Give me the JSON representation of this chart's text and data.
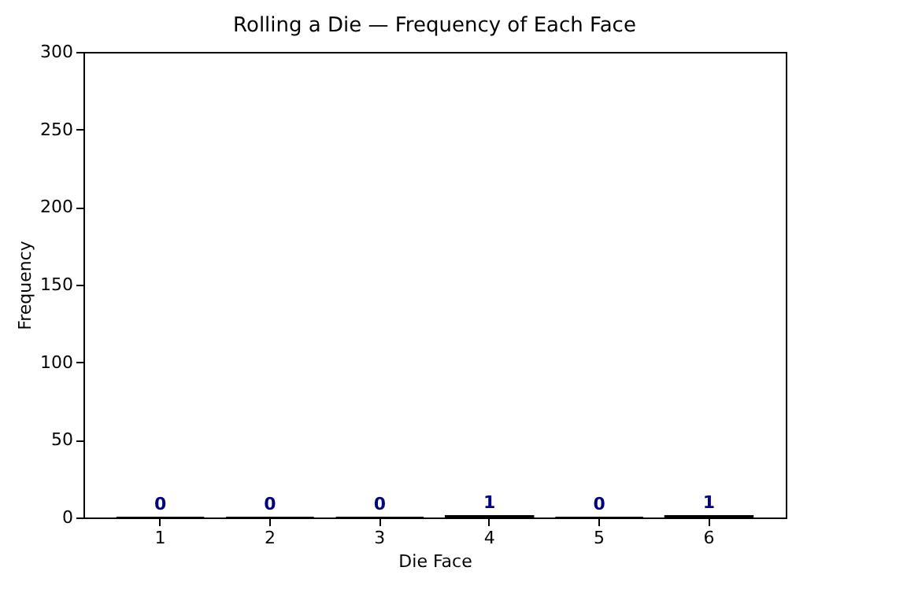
{
  "chart_data": {
    "type": "bar",
    "title": "Rolling a Die — Frequency of Each Face",
    "xlabel": "Die Face",
    "ylabel": "Frequency",
    "categories": [
      "1",
      "2",
      "3",
      "4",
      "5",
      "6"
    ],
    "values": [
      0,
      0,
      0,
      1,
      0,
      1
    ],
    "color": "#000000",
    "ylim": [
      0,
      300
    ],
    "yticks": [
      0,
      50,
      100,
      150,
      200,
      250,
      300
    ],
    "grid": false,
    "data_labels": true
  }
}
